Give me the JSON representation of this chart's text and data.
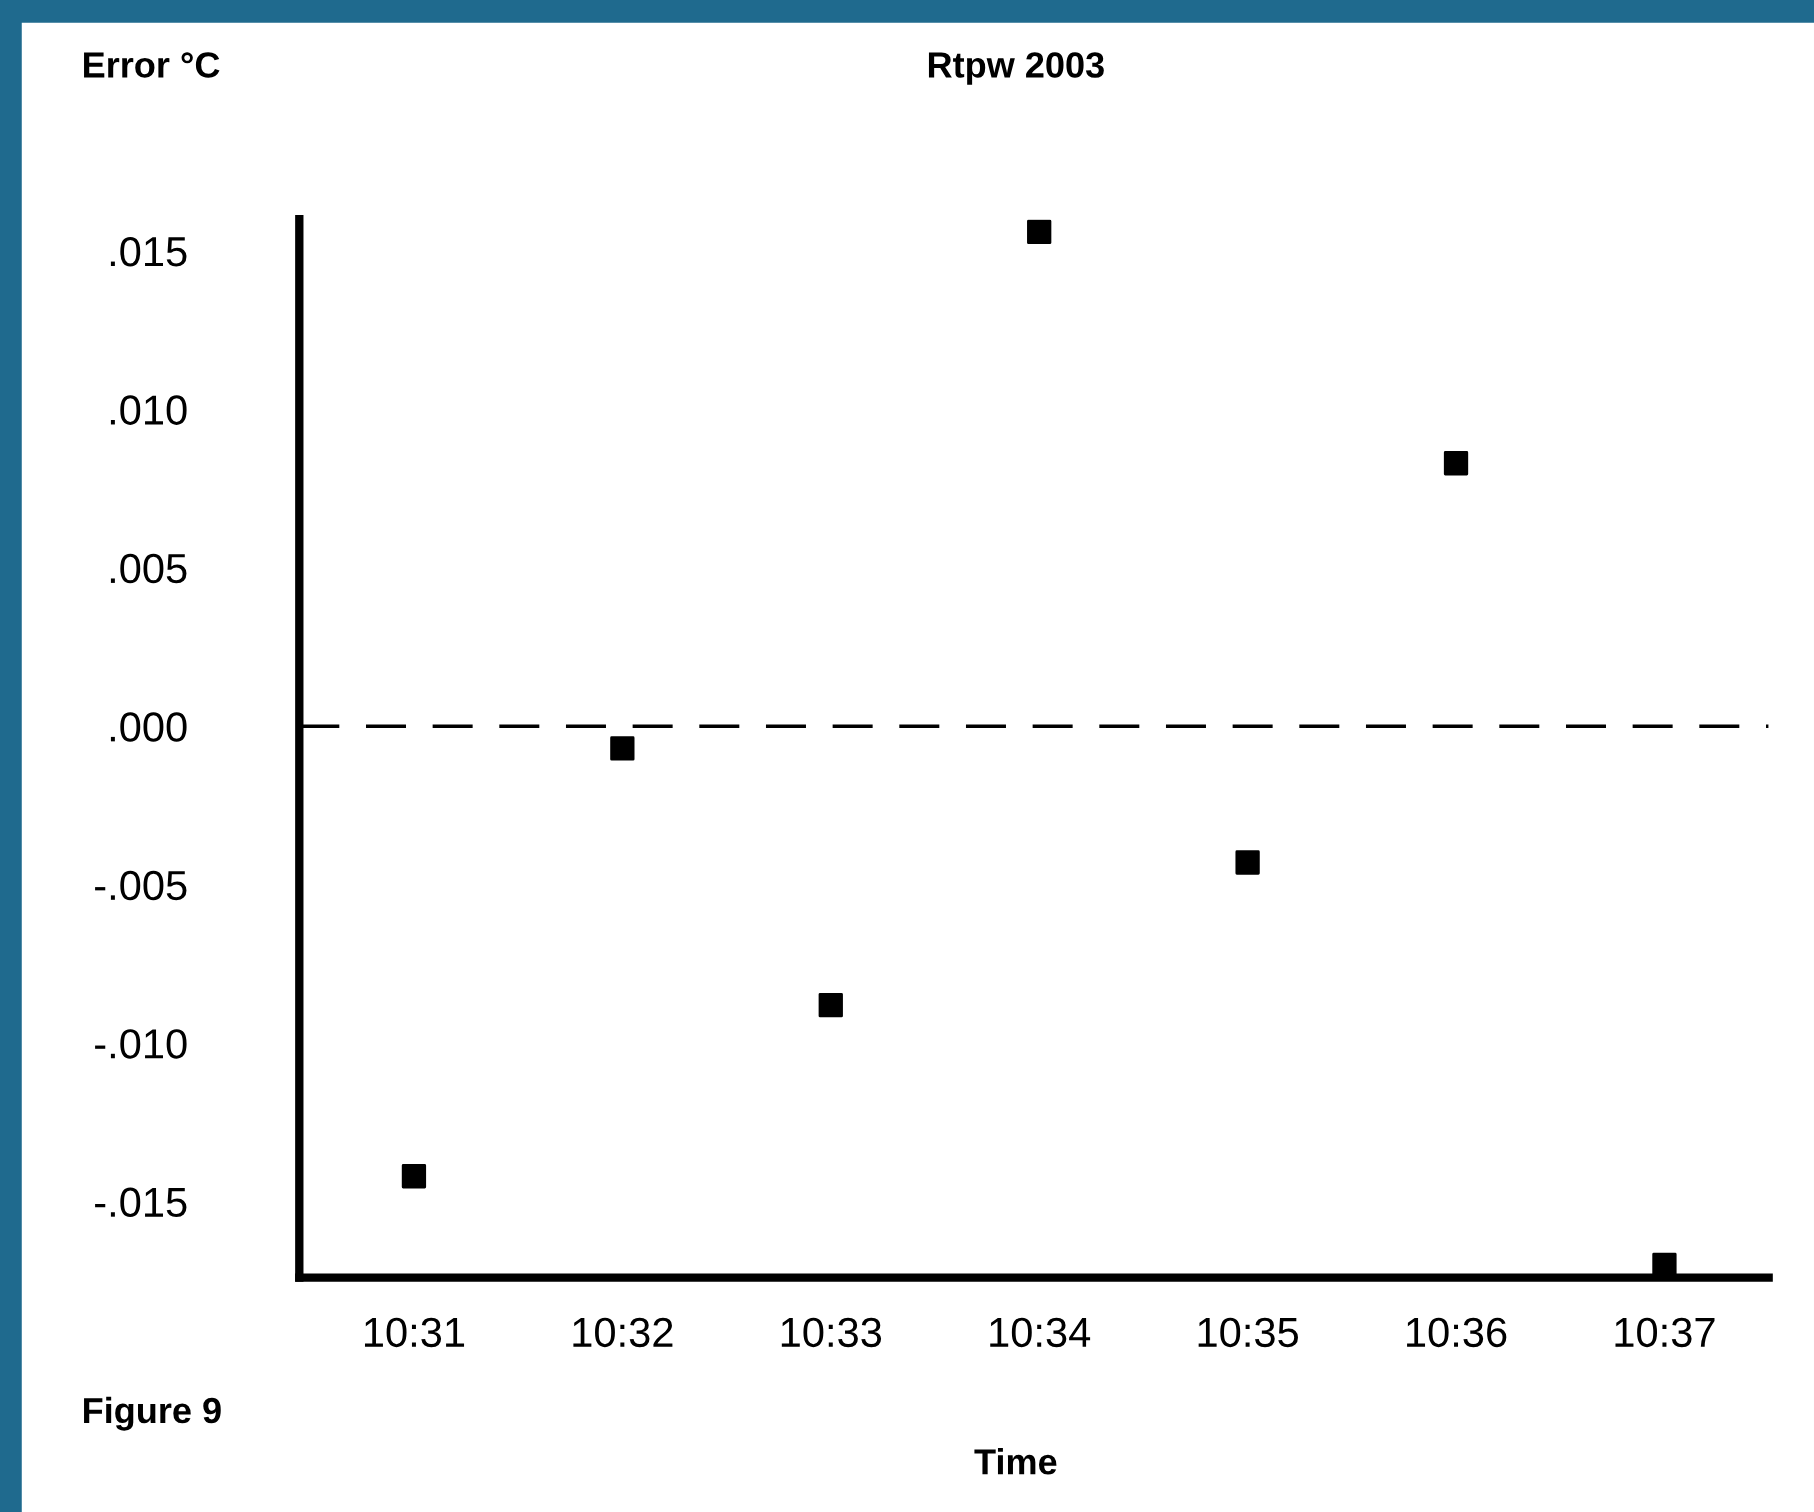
{
  "chart_data": {
    "type": "scatter",
    "title": "Rtpw 2003",
    "xlabel": "Time",
    "ylabel": "Error °C",
    "annotations": [
      "Figure 9"
    ],
    "categories": [
      "10:31",
      "10:32",
      "10:33",
      "10:34",
      "10:35",
      "10:36",
      "10:37"
    ],
    "series": [
      {
        "color": "#000000",
        "values": [
          -0.0142,
          -0.0007,
          -0.0088,
          0.0156,
          -0.0043,
          0.0083,
          -0.017
        ]
      }
    ],
    "ylim": [
      -0.0174,
      0.016
    ],
    "yticks": [
      {
        "value": 0.015,
        "label": ".015"
      },
      {
        "value": 0.01,
        "label": ".010"
      },
      {
        "value": 0.005,
        "label": ".005"
      },
      {
        "value": 0.0,
        "label": ".000"
      },
      {
        "value": -0.005,
        "label": "-.005"
      },
      {
        "value": -0.01,
        "label": "-.010"
      },
      {
        "value": -0.015,
        "label": "-.015"
      }
    ],
    "ref_lines": [
      {
        "axis": "y",
        "value": 0.0,
        "color": "#000000",
        "line_style": "dashed"
      }
    ],
    "marker": "square",
    "grid": false
  }
}
